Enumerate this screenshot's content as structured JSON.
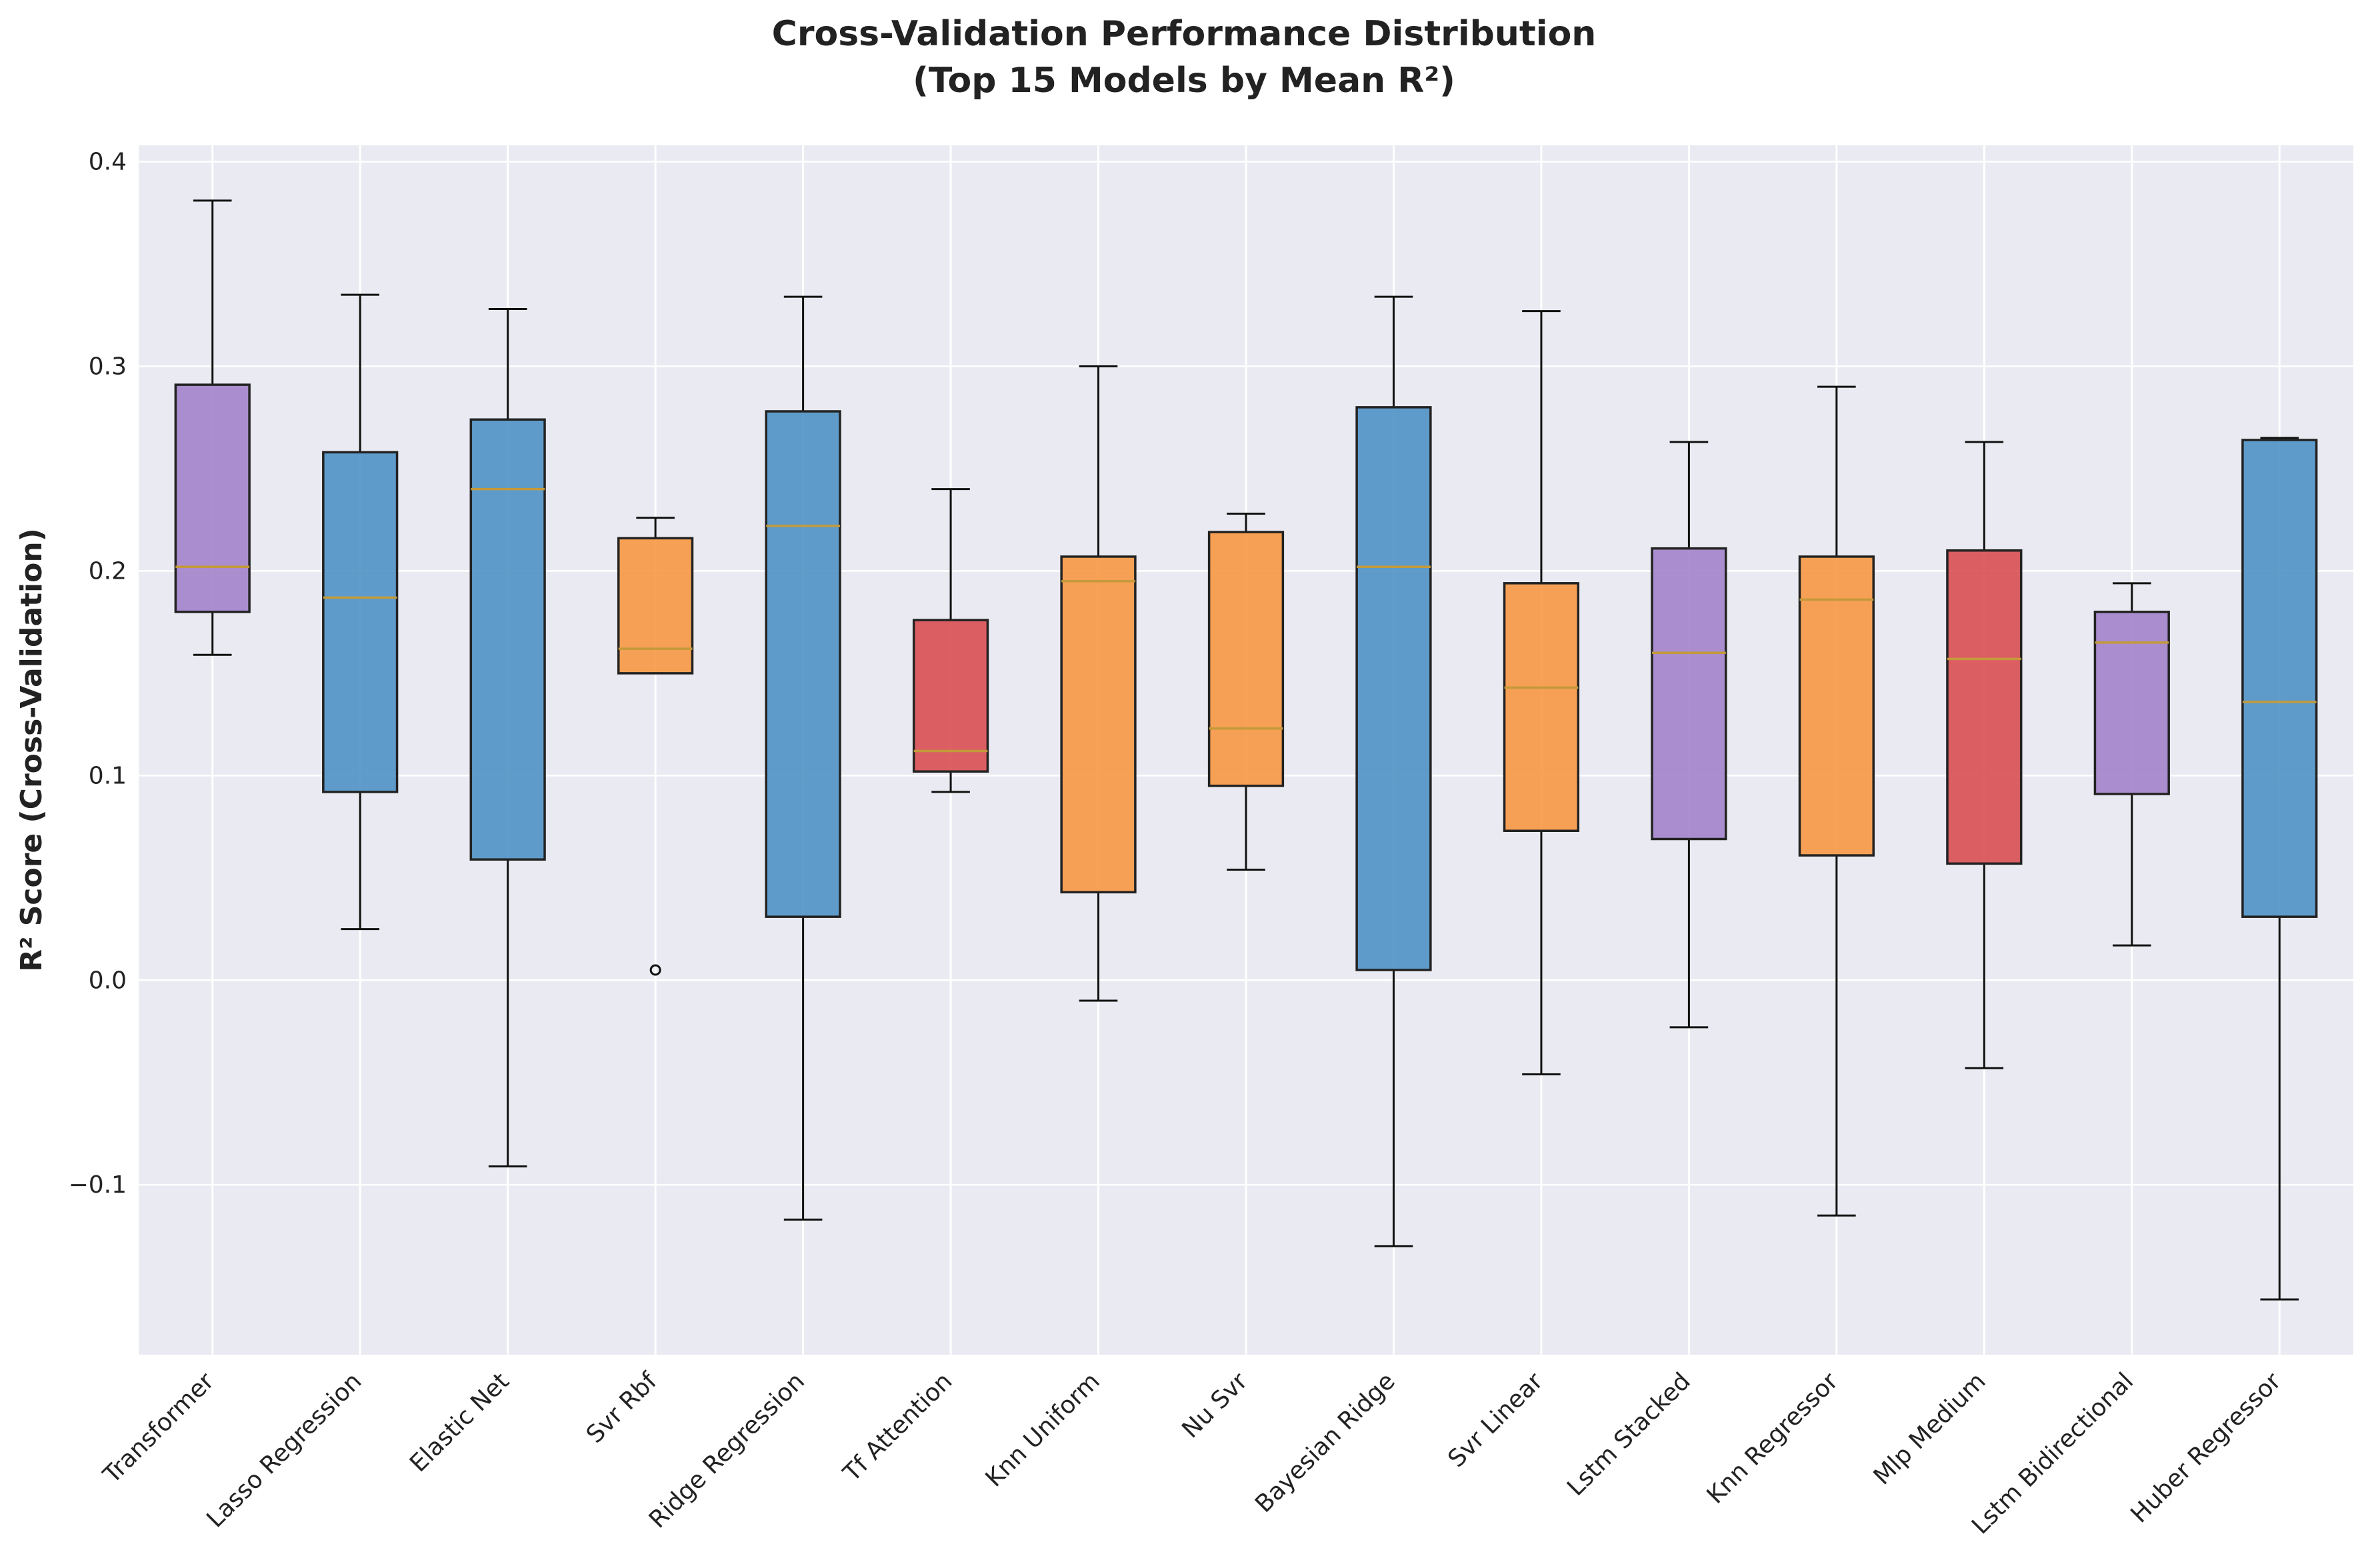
{
  "chart_data": {
    "type": "box",
    "title": "Cross-Validation Performance Distribution",
    "subtitle": "(Top 15 Models by Mean R²)",
    "xlabel": "",
    "ylabel": "R² Score (Cross-Validation)",
    "ylim": [
      -0.183,
      0.408
    ],
    "yticks": [
      -0.1,
      0.0,
      0.1,
      0.2,
      0.3,
      0.4
    ],
    "ytick_labels": [
      "−0.1",
      "0.0",
      "0.1",
      "0.2",
      "0.3",
      "0.4"
    ],
    "grid": true,
    "legend": "none",
    "colors": {
      "purple": "#a07fc8",
      "blue": "#4a90c4",
      "orange": "#f7953f",
      "red": "#d84a4d",
      "median": "#c49a3a",
      "background": "#eaeaf2",
      "grid": "#ffffff"
    },
    "categories": [
      "Transformer",
      "Lasso Regression",
      "Elastic Net",
      "Svr Rbf",
      "Ridge Regression",
      "Tf Attention",
      "Knn Uniform",
      "Nu Svr",
      "Bayesian Ridge",
      "Svr Linear",
      "Lstm Stacked",
      "Knn Regressor",
      "Mlp Medium",
      "Lstm Bidirectional",
      "Huber Regressor"
    ],
    "boxes": [
      {
        "name": "Transformer",
        "whisker_low": 0.159,
        "q1": 0.18,
        "median": 0.202,
        "q3": 0.291,
        "whisker_high": 0.381,
        "outliers": [],
        "color": "purple"
      },
      {
        "name": "Lasso Regression",
        "whisker_low": 0.025,
        "q1": 0.092,
        "median": 0.187,
        "q3": 0.258,
        "whisker_high": 0.335,
        "outliers": [],
        "color": "blue"
      },
      {
        "name": "Elastic Net",
        "whisker_low": -0.091,
        "q1": 0.059,
        "median": 0.24,
        "q3": 0.274,
        "whisker_high": 0.328,
        "outliers": [],
        "color": "blue"
      },
      {
        "name": "Svr Rbf",
        "whisker_low": 0.15,
        "q1": 0.15,
        "median": 0.162,
        "q3": 0.216,
        "whisker_high": 0.226,
        "outliers": [
          0.005
        ],
        "color": "orange"
      },
      {
        "name": "Ridge Regression",
        "whisker_low": -0.117,
        "q1": 0.031,
        "median": 0.222,
        "q3": 0.278,
        "whisker_high": 0.334,
        "outliers": [],
        "color": "blue"
      },
      {
        "name": "Tf Attention",
        "whisker_low": 0.092,
        "q1": 0.102,
        "median": 0.112,
        "q3": 0.176,
        "whisker_high": 0.24,
        "outliers": [],
        "color": "red"
      },
      {
        "name": "Knn Uniform",
        "whisker_low": -0.01,
        "q1": 0.043,
        "median": 0.195,
        "q3": 0.207,
        "whisker_high": 0.3,
        "outliers": [],
        "color": "orange"
      },
      {
        "name": "Nu Svr",
        "whisker_low": 0.054,
        "q1": 0.095,
        "median": 0.123,
        "q3": 0.219,
        "whisker_high": 0.228,
        "outliers": [],
        "color": "orange"
      },
      {
        "name": "Bayesian Ridge",
        "whisker_low": -0.13,
        "q1": 0.005,
        "median": 0.202,
        "q3": 0.28,
        "whisker_high": 0.334,
        "outliers": [],
        "color": "blue"
      },
      {
        "name": "Svr Linear",
        "whisker_low": -0.046,
        "q1": 0.073,
        "median": 0.143,
        "q3": 0.194,
        "whisker_high": 0.327,
        "outliers": [],
        "color": "orange"
      },
      {
        "name": "Lstm Stacked",
        "whisker_low": -0.023,
        "q1": 0.069,
        "median": 0.16,
        "q3": 0.211,
        "whisker_high": 0.263,
        "outliers": [],
        "color": "purple"
      },
      {
        "name": "Knn Regressor",
        "whisker_low": -0.115,
        "q1": 0.061,
        "median": 0.186,
        "q3": 0.207,
        "whisker_high": 0.29,
        "outliers": [],
        "color": "orange"
      },
      {
        "name": "Mlp Medium",
        "whisker_low": -0.043,
        "q1": 0.057,
        "median": 0.157,
        "q3": 0.21,
        "whisker_high": 0.263,
        "outliers": [],
        "color": "red"
      },
      {
        "name": "Lstm Bidirectional",
        "whisker_low": 0.017,
        "q1": 0.091,
        "median": 0.165,
        "q3": 0.18,
        "whisker_high": 0.194,
        "outliers": [],
        "color": "purple"
      },
      {
        "name": "Huber Regressor",
        "whisker_low": -0.156,
        "q1": 0.031,
        "median": 0.136,
        "q3": 0.264,
        "whisker_high": 0.265,
        "outliers": [],
        "color": "blue"
      }
    ]
  }
}
